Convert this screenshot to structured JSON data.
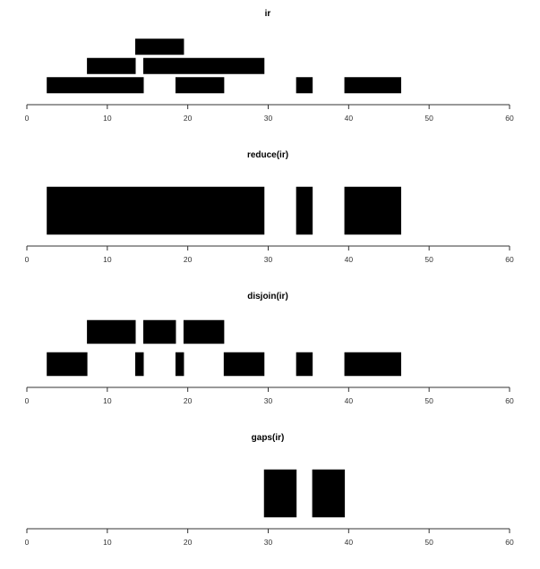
{
  "chart_data": [
    {
      "type": "bar",
      "title": "ir",
      "xlim": [
        0,
        60
      ],
      "ticks": [
        0,
        10,
        20,
        30,
        40,
        50,
        60
      ],
      "grid": false,
      "ranges": [
        {
          "start": 3,
          "end": 15,
          "row": 1
        },
        {
          "start": 8,
          "end": 14,
          "row": 2
        },
        {
          "start": 14,
          "end": 20,
          "row": 3
        },
        {
          "start": 15,
          "end": 30,
          "row": 2
        },
        {
          "start": 19,
          "end": 25,
          "row": 1
        },
        {
          "start": 34,
          "end": 36,
          "row": 1
        },
        {
          "start": 40,
          "end": 47,
          "row": 1
        }
      ]
    },
    {
      "type": "bar",
      "title": "reduce(ir)",
      "xlim": [
        0,
        60
      ],
      "ticks": [
        0,
        10,
        20,
        30,
        40,
        50,
        60
      ],
      "grid": false,
      "ranges": [
        {
          "start": 3,
          "end": 30,
          "row": 1
        },
        {
          "start": 34,
          "end": 36,
          "row": 1
        },
        {
          "start": 40,
          "end": 47,
          "row": 1
        }
      ]
    },
    {
      "type": "bar",
      "title": "disjoin(ir)",
      "xlim": [
        0,
        60
      ],
      "ticks": [
        0,
        10,
        20,
        30,
        40,
        50,
        60
      ],
      "grid": false,
      "ranges": [
        {
          "start": 3,
          "end": 8,
          "row": 1
        },
        {
          "start": 8,
          "end": 14,
          "row": 2
        },
        {
          "start": 14,
          "end": 15,
          "row": 1
        },
        {
          "start": 15,
          "end": 19,
          "row": 2
        },
        {
          "start": 19,
          "end": 20,
          "row": 1
        },
        {
          "start": 20,
          "end": 25,
          "row": 2
        },
        {
          "start": 25,
          "end": 30,
          "row": 1
        },
        {
          "start": 34,
          "end": 36,
          "row": 1
        },
        {
          "start": 40,
          "end": 47,
          "row": 1
        }
      ]
    },
    {
      "type": "bar",
      "title": "gaps(ir)",
      "xlim": [
        0,
        60
      ],
      "ticks": [
        0,
        10,
        20,
        30,
        40,
        50,
        60
      ],
      "grid": false,
      "ranges": [
        {
          "start": 30,
          "end": 34,
          "row": 1
        },
        {
          "start": 36,
          "end": 40,
          "row": 1
        }
      ]
    }
  ]
}
